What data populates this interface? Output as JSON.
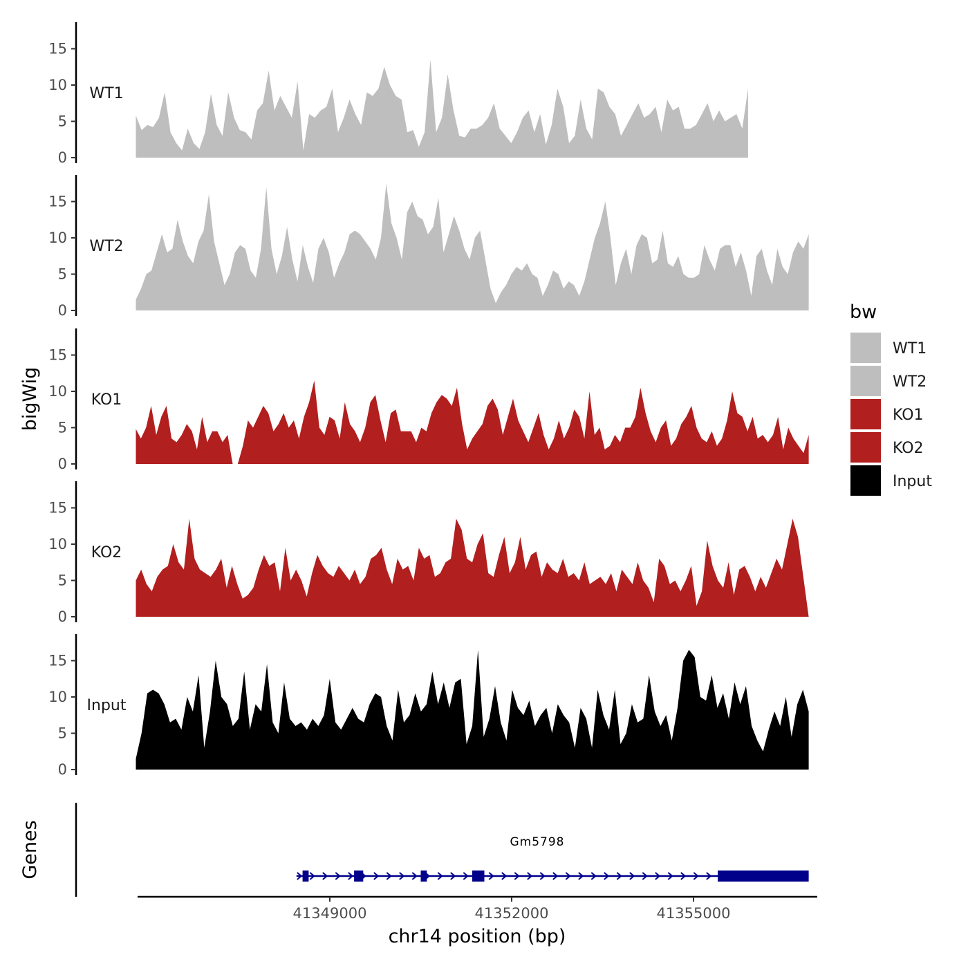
{
  "chart_data": {
    "type": "area",
    "region": {
      "chrom": "chr14",
      "start": 41345800,
      "end": 41356900
    },
    "y_axis": {
      "title": "bigWig",
      "ylim": [
        0,
        19
      ],
      "ticks": [
        0,
        5,
        10,
        15
      ],
      "tick_labels": [
        "0",
        "5",
        "10",
        "15"
      ]
    },
    "gene_axis": {
      "title": "Genes"
    },
    "x_axis": {
      "title": "chr14 position (bp)",
      "ticks": [
        41349000,
        41352000,
        41355000
      ],
      "tick_labels": [
        "41349000",
        "41352000",
        "41355000"
      ]
    },
    "legend": {
      "title": "bw",
      "position": "right",
      "entries": [
        {
          "label": "WT1",
          "color": "#bebebe"
        },
        {
          "label": "WT2",
          "color": "#bebebe"
        },
        {
          "label": "KO1",
          "color": "#b21f1f"
        },
        {
          "label": "KO2",
          "color": "#b21f1f"
        },
        {
          "label": "Input",
          "color": "#000000"
        }
      ]
    },
    "series": [
      {
        "name": "WT1",
        "color": "#bebebe",
        "start": 41345800,
        "end": 41355900,
        "values": [
          5.8,
          3.8,
          4.5,
          4.2,
          5.5,
          9.0,
          3.5,
          2.0,
          1.0,
          4.0,
          2.0,
          1.2,
          3.5,
          8.8,
          4.5,
          3.0,
          9.0,
          5.5,
          3.8,
          3.5,
          2.5,
          6.5,
          7.5,
          12.0,
          6.5,
          8.5,
          7.0,
          5.5,
          10.5,
          1.0,
          6.0,
          5.5,
          6.5,
          7.0,
          9.5,
          3.5,
          5.5,
          8.0,
          6.0,
          4.5,
          9.0,
          8.5,
          9.5,
          12.5,
          10.0,
          8.5,
          8.0,
          3.5,
          3.8,
          1.5,
          3.5,
          13.5,
          3.5,
          5.5,
          11.5,
          6.5,
          3.0,
          2.8,
          4.0,
          4.0,
          4.5,
          5.5,
          7.5,
          4.0,
          3.0,
          2.0,
          3.5,
          5.5,
          6.5,
          3.5,
          6.0,
          1.8,
          4.5,
          9.5,
          7.0,
          2.0,
          3.0,
          8.0,
          4.0,
          2.5,
          9.5,
          9.0,
          7.0,
          6.0,
          3.0,
          4.5,
          6.0,
          7.5,
          5.5,
          6.0,
          7.0,
          3.5,
          8.0,
          6.5,
          7.0,
          4.0,
          4.0,
          4.5,
          6.0,
          7.5,
          5.0,
          6.5,
          5.0,
          5.5,
          6.0,
          4.0,
          9.5
        ]
      },
      {
        "name": "WT2",
        "color": "#bebebe",
        "start": 41345800,
        "end": 41356900,
        "values": [
          1.5,
          3.0,
          5.0,
          5.5,
          8.0,
          10.5,
          8.0,
          8.5,
          12.5,
          9.5,
          7.5,
          6.5,
          9.5,
          11.0,
          16.0,
          9.5,
          6.5,
          3.5,
          5.0,
          8.0,
          9.0,
          8.5,
          5.5,
          4.5,
          8.5,
          17.0,
          8.5,
          5.0,
          7.5,
          11.5,
          7.0,
          4.0,
          9.0,
          6.0,
          3.8,
          8.5,
          10.0,
          8.0,
          4.5,
          6.5,
          8.0,
          10.5,
          11.0,
          10.5,
          9.5,
          8.5,
          7.0,
          10.0,
          17.5,
          12.0,
          10.0,
          7.0,
          13.5,
          15.0,
          13.0,
          12.5,
          10.5,
          11.5,
          15.5,
          8.0,
          10.5,
          13.0,
          11.0,
          8.5,
          7.0,
          10.0,
          11.0,
          7.0,
          3.0,
          1.0,
          2.5,
          3.5,
          5.0,
          6.0,
          5.5,
          6.5,
          5.0,
          4.5,
          2.0,
          3.5,
          5.5,
          5.0,
          3.0,
          4.0,
          3.5,
          2.0,
          4.0,
          7.0,
          10.0,
          12.0,
          15.0,
          10.0,
          3.5,
          6.5,
          8.5,
          5.0,
          9.0,
          10.5,
          10.0,
          6.5,
          7.0,
          11.0,
          6.5,
          6.0,
          7.5,
          5.0,
          4.5,
          4.5,
          5.0,
          9.0,
          7.0,
          5.5,
          8.5,
          9.0,
          9.0,
          6.0,
          8.0,
          5.5,
          2.0,
          7.5,
          8.5,
          5.5,
          3.5,
          8.5,
          6.0,
          5.0,
          8.0,
          9.5,
          8.5,
          10.5
        ]
      },
      {
        "name": "KO1",
        "color": "#b21f1f",
        "start": 41345800,
        "end": 41356900,
        "values": [
          4.8,
          3.5,
          5.0,
          8.0,
          4.0,
          6.5,
          8.0,
          3.5,
          3.0,
          4.0,
          5.5,
          4.5,
          2.0,
          6.5,
          3.0,
          4.5,
          4.5,
          3.0,
          4.0,
          0.0,
          0.0,
          2.5,
          6.0,
          5.0,
          6.5,
          8.0,
          7.0,
          4.5,
          5.5,
          7.0,
          5.0,
          6.0,
          3.5,
          6.5,
          8.5,
          11.5,
          5.0,
          4.0,
          6.5,
          6.0,
          3.5,
          8.5,
          5.5,
          4.5,
          3.0,
          5.0,
          8.5,
          9.5,
          6.0,
          3.0,
          7.0,
          7.5,
          4.5,
          4.5,
          4.5,
          3.0,
          5.0,
          4.5,
          7.0,
          8.5,
          9.5,
          9.0,
          8.0,
          10.5,
          5.5,
          2.0,
          3.5,
          4.5,
          5.5,
          8.0,
          9.0,
          7.5,
          4.0,
          6.5,
          9.0,
          6.0,
          4.5,
          3.0,
          5.0,
          7.0,
          4.0,
          2.0,
          3.5,
          6.0,
          3.5,
          5.0,
          7.5,
          6.5,
          3.5,
          10.0,
          4.0,
          5.0,
          2.0,
          2.5,
          4.0,
          3.0,
          5.0,
          5.0,
          6.5,
          10.5,
          7.0,
          4.5,
          3.0,
          5.0,
          6.0,
          2.5,
          3.5,
          5.5,
          6.5,
          8.0,
          5.0,
          3.5,
          3.0,
          4.5,
          2.5,
          3.5,
          6.0,
          10.0,
          7.0,
          6.5,
          4.5,
          6.5,
          3.5,
          4.0,
          3.0,
          4.0,
          6.5,
          2.0,
          5.0,
          3.5,
          2.5,
          1.5,
          4.0
        ]
      },
      {
        "name": "KO2",
        "color": "#b21f1f",
        "start": 41345800,
        "end": 41356900,
        "values": [
          5.0,
          6.5,
          4.5,
          3.5,
          5.5,
          6.5,
          7.0,
          10.0,
          7.5,
          6.5,
          13.5,
          8.0,
          6.5,
          6.0,
          5.5,
          6.5,
          8.0,
          4.0,
          7.0,
          4.5,
          2.5,
          3.0,
          4.0,
          6.5,
          8.5,
          7.0,
          7.5,
          3.5,
          9.5,
          5.0,
          6.5,
          5.0,
          2.8,
          6.0,
          8.5,
          7.0,
          6.0,
          5.5,
          7.0,
          6.0,
          5.0,
          6.5,
          4.5,
          5.5,
          8.0,
          8.5,
          9.5,
          6.5,
          4.5,
          8.0,
          6.5,
          7.0,
          5.0,
          9.5,
          8.0,
          8.5,
          5.5,
          6.0,
          7.5,
          8.0,
          13.5,
          12.0,
          8.0,
          7.5,
          10.0,
          11.5,
          6.0,
          5.5,
          8.5,
          11.0,
          6.0,
          7.5,
          11.0,
          6.5,
          8.5,
          9.0,
          5.5,
          7.5,
          6.5,
          6.0,
          8.0,
          5.5,
          6.0,
          5.0,
          7.5,
          4.5,
          5.0,
          5.5,
          4.5,
          6.0,
          3.5,
          6.5,
          5.5,
          4.5,
          7.5,
          5.0,
          4.0,
          2.0,
          8.0,
          7.0,
          4.5,
          5.0,
          3.5,
          5.0,
          7.0,
          1.5,
          3.5,
          10.5,
          7.0,
          5.0,
          4.0,
          7.5,
          3.0,
          6.5,
          7.0,
          5.5,
          3.5,
          5.5,
          4.0,
          6.0,
          8.0,
          6.5,
          10.0,
          13.5,
          11.0,
          5.5,
          0.0
        ]
      },
      {
        "name": "Input",
        "color": "#000000",
        "start": 41345800,
        "end": 41356900,
        "values": [
          1.5,
          5.0,
          10.5,
          11.0,
          10.5,
          9.0,
          6.5,
          7.0,
          5.5,
          10.0,
          8.0,
          13.0,
          3.0,
          8.0,
          15.0,
          10.0,
          9.0,
          6.0,
          7.0,
          13.5,
          5.5,
          9.0,
          8.0,
          14.5,
          6.5,
          5.0,
          12.0,
          7.0,
          6.0,
          6.5,
          5.5,
          7.0,
          6.0,
          7.5,
          12.5,
          6.5,
          5.5,
          7.0,
          8.5,
          7.0,
          6.5,
          9.0,
          10.5,
          10.0,
          6.0,
          4.0,
          11.0,
          6.5,
          7.5,
          10.5,
          8.0,
          9.0,
          13.5,
          9.0,
          12.0,
          8.5,
          12.0,
          12.5,
          3.5,
          6.0,
          16.5,
          4.5,
          7.0,
          11.5,
          6.5,
          4.0,
          11.0,
          8.5,
          7.5,
          9.5,
          6.0,
          7.5,
          8.5,
          5.0,
          9.0,
          7.5,
          6.5,
          3.0,
          8.5,
          7.0,
          3.0,
          11.0,
          7.5,
          5.5,
          11.0,
          3.5,
          5.0,
          9.0,
          6.5,
          7.0,
          13.0,
          8.0,
          6.0,
          7.5,
          4.0,
          8.5,
          15.0,
          16.5,
          15.5,
          10.0,
          9.5,
          13.0,
          8.5,
          10.5,
          7.0,
          12.0,
          9.0,
          11.5,
          6.0,
          4.0,
          2.5,
          5.5,
          8.0,
          6.0,
          10.0,
          4.5,
          9.0,
          11.0,
          8.0
        ]
      }
    ],
    "gene_track": {
      "gene": "Gm5798",
      "color": "#00008b",
      "strand": "+",
      "start": 41348450,
      "end": 41356900,
      "exons": [
        [
          41348550,
          41348650
        ],
        [
          41349400,
          41349550
        ],
        [
          41350500,
          41350600
        ],
        [
          41351350,
          41351550
        ],
        [
          41355400,
          41356900
        ]
      ]
    }
  }
}
